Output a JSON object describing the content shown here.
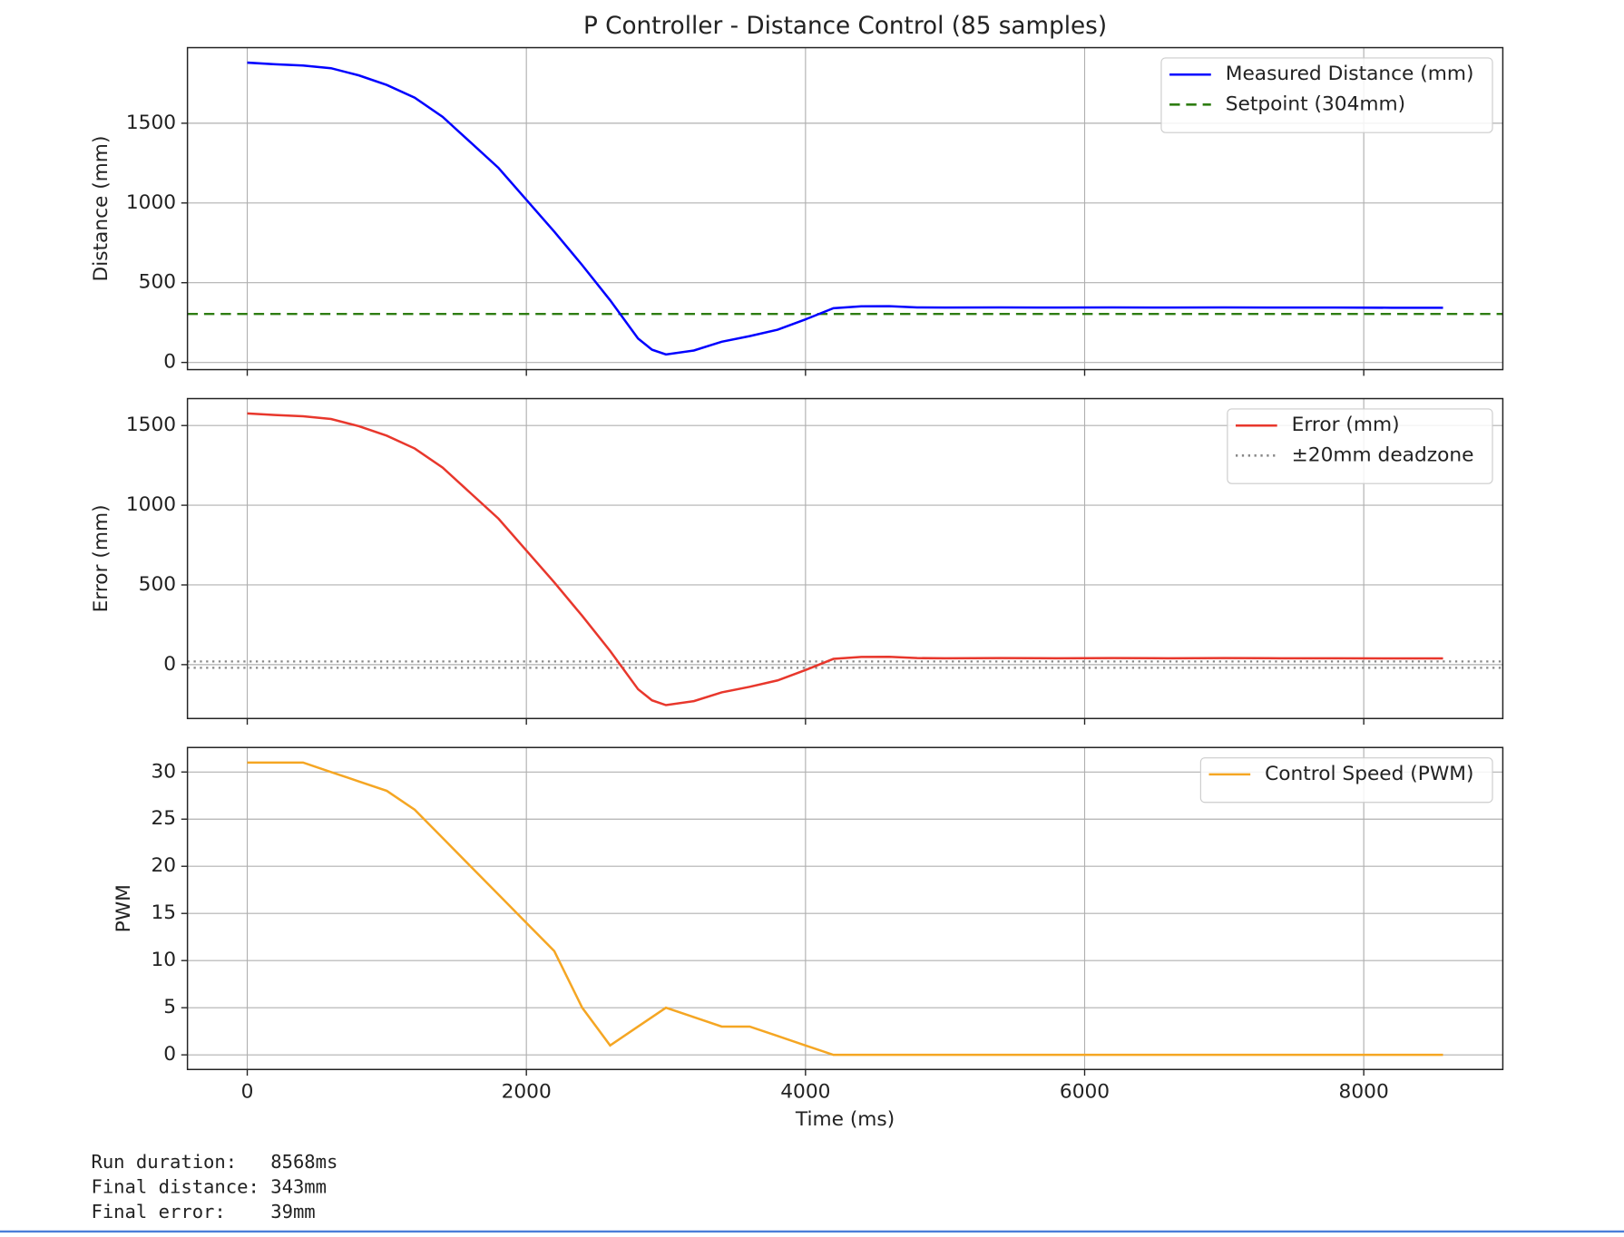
{
  "title": "P Controller - Distance Control (85 samples)",
  "footer": [
    "Run duration:   8568ms",
    "Final distance: 343mm",
    "Final error:    39mm"
  ],
  "chart_data": [
    {
      "type": "line",
      "ylabel": "Distance (mm)",
      "grid": true,
      "legend": "upper right",
      "xlim": [
        -428.4,
        8996.4
      ],
      "xticks": [
        0,
        2000,
        4000,
        6000,
        8000
      ],
      "ylim": [
        -45,
        1974
      ],
      "yticks": [
        0,
        500,
        1000,
        1500
      ],
      "x": [
        0,
        200,
        400,
        600,
        800,
        1000,
        1200,
        1400,
        1600,
        1800,
        2000,
        2200,
        2400,
        2600,
        2800,
        2900,
        3000,
        3200,
        3400,
        3600,
        3800,
        4000,
        4200,
        4400,
        4600,
        4800,
        5000,
        5400,
        5800,
        6200,
        6600,
        7000,
        7400,
        7800,
        8200,
        8568
      ],
      "series": [
        {
          "name": "Measured Distance (mm)",
          "color": "#0000ff",
          "style": "solid",
          "values": [
            1880,
            1870,
            1862,
            1845,
            1800,
            1740,
            1660,
            1540,
            1380,
            1220,
            1020,
            820,
            610,
            390,
            150,
            80,
            50,
            75,
            130,
            165,
            205,
            270,
            340,
            352,
            353,
            345,
            344,
            345,
            344,
            345,
            344,
            345,
            344,
            344,
            343,
            343
          ]
        }
      ],
      "hlines": [
        {
          "name": "Setpoint (304mm)",
          "values": [
            304
          ],
          "color": "#2e7d12",
          "style": "dashed"
        }
      ]
    },
    {
      "type": "line",
      "ylabel": "Error (mm)",
      "grid": true,
      "legend": "upper right",
      "xlim": [
        -428.4,
        8996.4
      ],
      "xticks": [
        0,
        2000,
        4000,
        6000,
        8000
      ],
      "ylim": [
        -338,
        1669
      ],
      "yticks": [
        0,
        500,
        1000,
        1500
      ],
      "x": [
        0,
        200,
        400,
        600,
        800,
        1000,
        1200,
        1400,
        1600,
        1800,
        2000,
        2200,
        2400,
        2600,
        2800,
        2900,
        3000,
        3200,
        3400,
        3600,
        3800,
        4000,
        4200,
        4400,
        4600,
        4800,
        5000,
        5400,
        5800,
        6200,
        6600,
        7000,
        7400,
        7800,
        8200,
        8568
      ],
      "series": [
        {
          "name": "Error (mm)",
          "color": "#e8372c",
          "style": "solid",
          "values": [
            1576,
            1566,
            1558,
            1541,
            1496,
            1436,
            1356,
            1236,
            1076,
            916,
            716,
            516,
            306,
            86,
            -154,
            -224,
            -254,
            -229,
            -174,
            -139,
            -99,
            -34,
            36,
            48,
            49,
            41,
            40,
            41,
            40,
            41,
            40,
            41,
            40,
            40,
            39,
            39
          ]
        }
      ],
      "hlines": [
        {
          "name": "±20mm deadzone",
          "values": [
            20,
            -20
          ],
          "color": "#888888",
          "style": "dotted"
        }
      ]
    },
    {
      "type": "line",
      "ylabel": "PWM",
      "xlabel": "Time (ms)",
      "grid": true,
      "legend": "upper right",
      "xlim": [
        -428.4,
        8996.4
      ],
      "xticks": [
        0,
        2000,
        4000,
        6000,
        8000
      ],
      "ylim": [
        -1.55,
        32.6
      ],
      "yticks": [
        0,
        5,
        10,
        15,
        20,
        25,
        30
      ],
      "x": [
        0,
        200,
        400,
        600,
        800,
        1000,
        1200,
        1400,
        1600,
        1800,
        2000,
        2200,
        2400,
        2600,
        2800,
        2900,
        3000,
        3200,
        3400,
        3600,
        3800,
        4000,
        4200,
        4400,
        4600,
        4800,
        5000,
        5400,
        5800,
        6200,
        6600,
        7000,
        7400,
        7800,
        8200,
        8568
      ],
      "series": [
        {
          "name": "Control Speed (PWM)",
          "color": "#f5a623",
          "style": "solid",
          "values": [
            31,
            31,
            31,
            30,
            29,
            28,
            26,
            23,
            20,
            17,
            14,
            11,
            5,
            1,
            3,
            4,
            5,
            4,
            3,
            3,
            2,
            1,
            0,
            0,
            0,
            0,
            0,
            0,
            0,
            0,
            0,
            0,
            0,
            0,
            0,
            0
          ]
        }
      ],
      "hlines": []
    }
  ]
}
